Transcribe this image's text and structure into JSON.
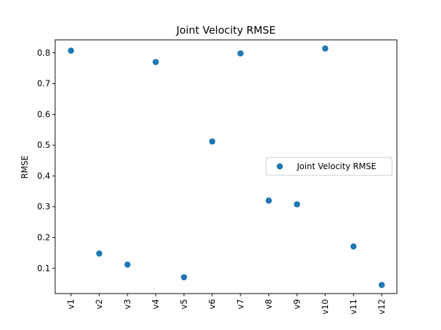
{
  "chart_data": {
    "type": "scatter",
    "title": "Joint Velocity RMSE",
    "xlabel": "",
    "ylabel": "RMSE",
    "categories": [
      "v1",
      "v2",
      "v3",
      "v4",
      "v5",
      "v6",
      "v7",
      "v8",
      "v9",
      "v10",
      "v11",
      "v12"
    ],
    "series": [
      {
        "name": "Joint Velocity RMSE",
        "values": [
          0.807,
          0.148,
          0.112,
          0.77,
          0.071,
          0.512,
          0.798,
          0.32,
          0.308,
          0.814,
          0.171,
          0.046
        ],
        "color": "#1f77b4"
      }
    ],
    "ylim": [
      0.018,
      0.842
    ],
    "yticks": [
      "0.1",
      "0.2",
      "0.3",
      "0.4",
      "0.5",
      "0.6",
      "0.7",
      "0.8"
    ],
    "grid": false,
    "legend": "center-right"
  }
}
